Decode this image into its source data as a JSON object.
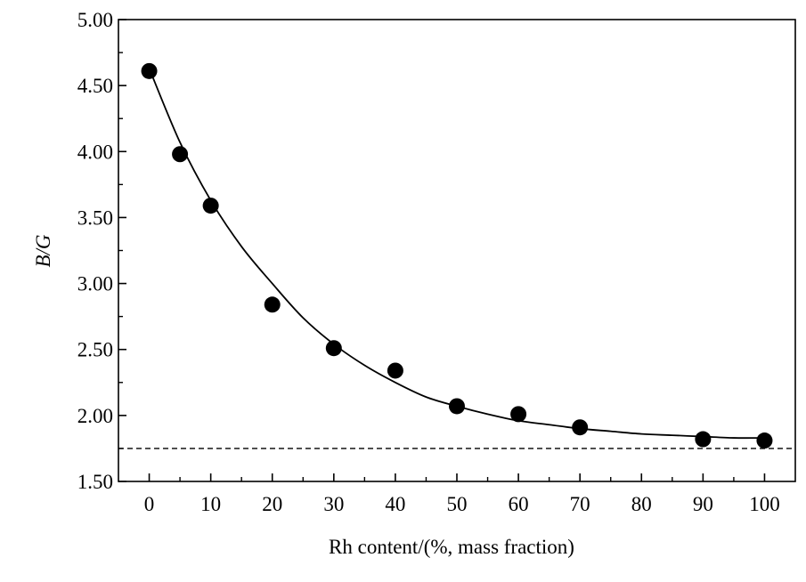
{
  "chart_data": {
    "type": "scatter",
    "title": "",
    "xlabel": "Rh content/(%, mass fraction)",
    "ylabel": "B/G",
    "xlim": [
      -5,
      105
    ],
    "ylim": [
      1.5,
      5.0
    ],
    "x_ticks": [
      0,
      10,
      20,
      30,
      40,
      50,
      60,
      70,
      80,
      90,
      100
    ],
    "x_tick_labels": [
      "0",
      "10",
      "20",
      "30",
      "40",
      "50",
      "60",
      "70",
      "80",
      "90",
      "100"
    ],
    "y_ticks": [
      1.5,
      2.0,
      2.5,
      3.0,
      3.5,
      4.0,
      4.5,
      5.0
    ],
    "y_tick_labels": [
      "1.50",
      "2.00",
      "2.50",
      "3.00",
      "3.50",
      "4.00",
      "4.50",
      "5.00"
    ],
    "points": {
      "x": [
        0,
        5,
        10,
        20,
        30,
        40,
        50,
        60,
        70,
        90,
        100
      ],
      "y": [
        4.61,
        3.98,
        3.59,
        2.84,
        2.51,
        2.34,
        2.07,
        2.01,
        1.91,
        1.82,
        1.81
      ]
    },
    "fit_curve": {
      "x": [
        0,
        5,
        10,
        15,
        20,
        25,
        30,
        35,
        40,
        45,
        50,
        55,
        60,
        65,
        70,
        75,
        80,
        85,
        90,
        95,
        100
      ],
      "y": [
        4.63,
        4.07,
        3.63,
        3.28,
        3.0,
        2.74,
        2.54,
        2.38,
        2.25,
        2.14,
        2.07,
        2.01,
        1.96,
        1.93,
        1.9,
        1.88,
        1.86,
        1.85,
        1.84,
        1.83,
        1.83
      ]
    },
    "reference_line": {
      "y": 1.75,
      "style": "dashed"
    },
    "grid": false,
    "legend": "none"
  }
}
